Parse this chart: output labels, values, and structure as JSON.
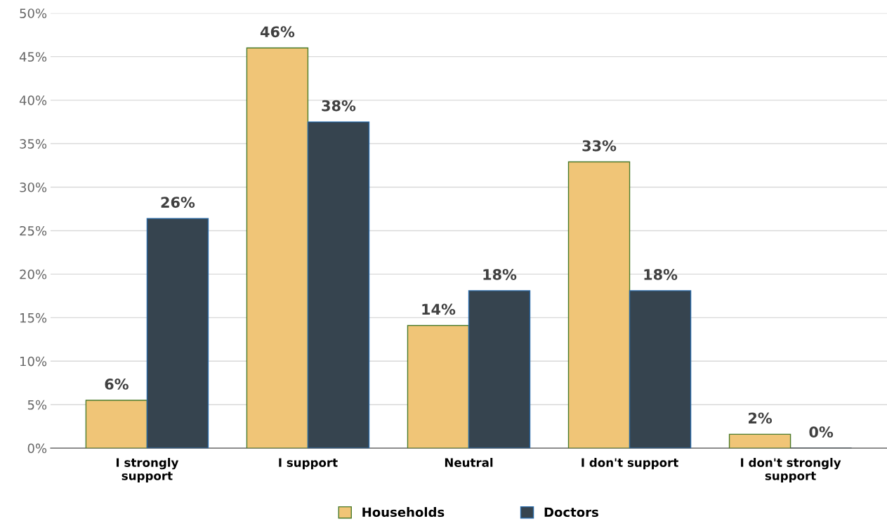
{
  "chart_data": {
    "type": "bar",
    "categories": [
      "I strongly\nsupport",
      "I support",
      "Neutral",
      "I don't support",
      "I don't strongly\nsupport"
    ],
    "series": [
      {
        "name": "Households",
        "color": "#f0c577",
        "values": [
          5.5,
          46,
          14.1,
          32.9,
          1.6
        ],
        "value_labels": [
          "6%",
          "46%",
          "14%",
          "33%",
          "2%"
        ]
      },
      {
        "name": "Doctors",
        "color": "#36444f",
        "values": [
          26.4,
          37.5,
          18.1,
          18.1,
          0
        ],
        "value_labels": [
          "26%",
          "38%",
          "18%",
          "18%",
          "0%"
        ]
      }
    ],
    "ylim": [
      0,
      50
    ],
    "yticks": [
      {
        "value": 0,
        "label": "0%"
      },
      {
        "value": 5,
        "label": "5%"
      },
      {
        "value": 10,
        "label": "10%"
      },
      {
        "value": 15,
        "label": "15%"
      },
      {
        "value": 20,
        "label": "20%"
      },
      {
        "value": 25,
        "label": "25%"
      },
      {
        "value": 30,
        "label": "30%"
      },
      {
        "value": 35,
        "label": "35%"
      },
      {
        "value": 40,
        "label": "40%"
      },
      {
        "value": 45,
        "label": "45%"
      },
      {
        "value": 50,
        "label": "50%"
      }
    ],
    "grid": "y",
    "legend": "bottom"
  }
}
